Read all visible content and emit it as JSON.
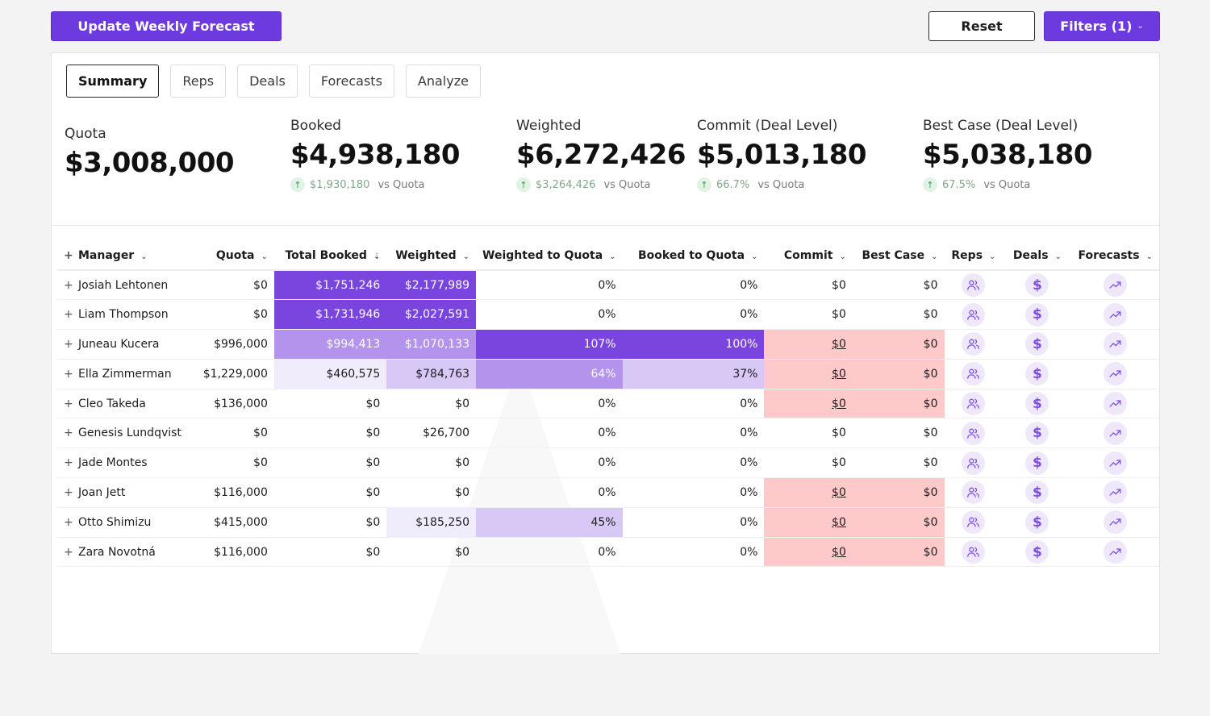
{
  "toolbar": {
    "update_label": "Update Weekly Forecast",
    "reset_label": "Reset",
    "filters_label": "Filters (1)"
  },
  "tabs": [
    "Summary",
    "Reps",
    "Deals",
    "Forecasts",
    "Analyze"
  ],
  "active_tab": "Summary",
  "metrics": {
    "quota": {
      "label": "Quota",
      "value": "$3,008,000"
    },
    "booked": {
      "label": "Booked",
      "value": "$4,938,180",
      "delta": "$1,930,180",
      "suffix": "vs Quota"
    },
    "weighted": {
      "label": "Weighted",
      "value": "$6,272,426",
      "delta": "$3,264,426",
      "suffix": "vs Quota"
    },
    "commit": {
      "label": "Commit (Deal Level)",
      "value": "$5,013,180",
      "delta": "66.7%",
      "suffix": "vs Quota"
    },
    "bestcase": {
      "label": "Best Case (Deal Level)",
      "value": "$5,038,180",
      "delta": "67.5%",
      "suffix": "vs Quota"
    }
  },
  "table": {
    "headers": {
      "manager": "Manager",
      "quota": "Quota",
      "total_booked": "Total Booked",
      "weighted": "Weighted",
      "weighted_to_quota": "Weighted to Quota",
      "booked_to_quota": "Booked to Quota",
      "commit": "Commit",
      "best_case": "Best Case",
      "reps": "Reps",
      "deals": "Deals",
      "forecasts": "Forecasts"
    },
    "rows": [
      {
        "manager": "Josiah Lehtonen",
        "quota": "$0",
        "total_booked": "$1,751,246",
        "weighted": "$2,177,989",
        "weighted_to_quota": "0%",
        "booked_to_quota": "0%",
        "commit": "$0",
        "best_case": "$0",
        "booked_level": 4,
        "weighted_level": 4,
        "wtq_level": 0,
        "btq_level": 0,
        "flag": false
      },
      {
        "manager": "Liam Thompson",
        "quota": "$0",
        "total_booked": "$1,731,946",
        "weighted": "$2,027,591",
        "weighted_to_quota": "0%",
        "booked_to_quota": "0%",
        "commit": "$0",
        "best_case": "$0",
        "booked_level": 4,
        "weighted_level": 4,
        "wtq_level": 0,
        "btq_level": 0,
        "flag": false
      },
      {
        "manager": "Juneau Kucera",
        "quota": "$996,000",
        "total_booked": "$994,413",
        "weighted": "$1,070,133",
        "weighted_to_quota": "107%",
        "booked_to_quota": "100%",
        "commit": "$0",
        "best_case": "$0",
        "booked_level": 3,
        "weighted_level": 3,
        "wtq_level": 4,
        "btq_level": 4,
        "flag": true
      },
      {
        "manager": "Ella Zimmerman",
        "quota": "$1,229,000",
        "total_booked": "$460,575",
        "weighted": "$784,763",
        "weighted_to_quota": "64%",
        "booked_to_quota": "37%",
        "commit": "$0",
        "best_case": "$0",
        "booked_level": 1,
        "weighted_level": 2,
        "wtq_level": 3,
        "btq_level": 2,
        "flag": true
      },
      {
        "manager": "Cleo Takeda",
        "quota": "$136,000",
        "total_booked": "$0",
        "weighted": "$0",
        "weighted_to_quota": "0%",
        "booked_to_quota": "0%",
        "commit": "$0",
        "best_case": "$0",
        "booked_level": 0,
        "weighted_level": 0,
        "wtq_level": 0,
        "btq_level": 0,
        "flag": true
      },
      {
        "manager": "Genesis Lundqvist",
        "quota": "$0",
        "total_booked": "$0",
        "weighted": "$26,700",
        "weighted_to_quota": "0%",
        "booked_to_quota": "0%",
        "commit": "$0",
        "best_case": "$0",
        "booked_level": 0,
        "weighted_level": 0,
        "wtq_level": 0,
        "btq_level": 0,
        "flag": false
      },
      {
        "manager": "Jade Montes",
        "quota": "$0",
        "total_booked": "$0",
        "weighted": "$0",
        "weighted_to_quota": "0%",
        "booked_to_quota": "0%",
        "commit": "$0",
        "best_case": "$0",
        "booked_level": 0,
        "weighted_level": 0,
        "wtq_level": 0,
        "btq_level": 0,
        "flag": false
      },
      {
        "manager": "Joan Jett",
        "quota": "$116,000",
        "total_booked": "$0",
        "weighted": "$0",
        "weighted_to_quota": "0%",
        "booked_to_quota": "0%",
        "commit": "$0",
        "best_case": "$0",
        "booked_level": 0,
        "weighted_level": 0,
        "wtq_level": 0,
        "btq_level": 0,
        "flag": true
      },
      {
        "manager": "Otto Shimizu",
        "quota": "$415,000",
        "total_booked": "$0",
        "weighted": "$185,250",
        "weighted_to_quota": "45%",
        "booked_to_quota": "0%",
        "commit": "$0",
        "best_case": "$0",
        "booked_level": 0,
        "weighted_level": 1,
        "wtq_level": 2,
        "btq_level": 0,
        "flag": true
      },
      {
        "manager": "Zara Novotná",
        "quota": "$116,000",
        "total_booked": "$0",
        "weighted": "$0",
        "weighted_to_quota": "0%",
        "booked_to_quota": "0%",
        "commit": "$0",
        "best_case": "$0",
        "booked_level": 0,
        "weighted_level": 0,
        "wtq_level": 0,
        "btq_level": 0,
        "flag": true
      }
    ]
  },
  "colors": {
    "accent": "#6d3ae0",
    "heat_1": "#f1ecfb",
    "heat_2": "#d8c8f6",
    "heat_3": "#b393ec",
    "heat_4": "#7a45df",
    "flag": "#fdc9c9",
    "delta_up": "#7fa889"
  },
  "icons": {
    "reps": "users-icon",
    "deals": "dollar-icon",
    "forecasts": "trend-up-icon",
    "delta": "arrow-up-icon",
    "sort": "sort-descending-icon",
    "expand": "plus-icon"
  }
}
